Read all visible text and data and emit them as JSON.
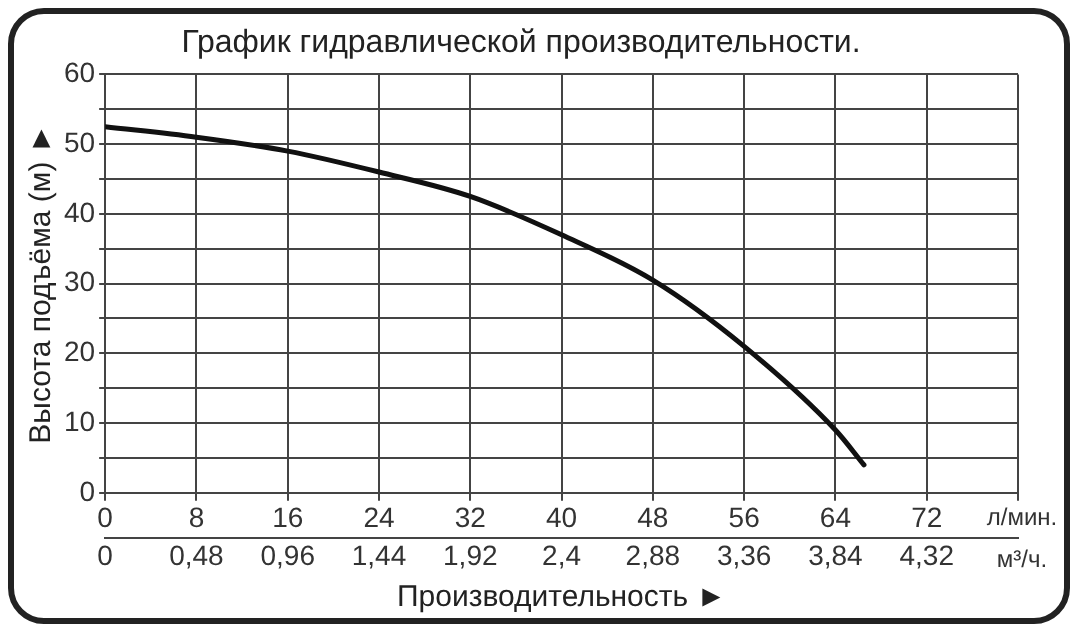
{
  "chart_data": {
    "type": "line",
    "title": "График гидравлической производительности.",
    "xlabel": "Производительность ►",
    "ylabel": "Высота подъёма (м) ►",
    "x": [
      0,
      8,
      16,
      24,
      32,
      40,
      48,
      56,
      64,
      66.5
    ],
    "series": [
      {
        "color": "#111111",
        "values": [
          52.5,
          51,
          49,
          46,
          42.5,
          37,
          30.5,
          21,
          9,
          4
        ]
      }
    ],
    "xlim": [
      0,
      80
    ],
    "xticks": [
      0,
      8,
      16,
      24,
      32,
      40,
      48,
      56,
      64,
      72,
      {
        "value": 80,
        "label": null
      }
    ],
    "x2lim": [
      0,
      4.8
    ],
    "x2ticks": [
      0,
      {
        "value": 0.48,
        "label": "0,48"
      },
      {
        "value": 0.96,
        "label": "0,96"
      },
      {
        "value": 1.44,
        "label": "1,44"
      },
      {
        "value": 1.92,
        "label": "1,92"
      },
      {
        "value": 2.4,
        "label": "2,4"
      },
      {
        "value": 2.88,
        "label": "2,88"
      },
      {
        "value": 3.36,
        "label": "3,36"
      },
      {
        "value": 3.84,
        "label": "3,84"
      },
      {
        "value": 4.32,
        "label": "4,32"
      }
    ],
    "ylim": [
      0,
      60
    ],
    "yticks": [
      0,
      {
        "value": 5,
        "label": null
      },
      10,
      {
        "value": 15,
        "label": null
      },
      20,
      {
        "value": 25,
        "label": null
      },
      30,
      {
        "value": 35,
        "label": null
      },
      40,
      {
        "value": 45,
        "label": null
      },
      50,
      {
        "value": 55,
        "label": null
      },
      60
    ],
    "annotations": [
      "л/мин.",
      "м³/ч."
    ],
    "grid": true,
    "legend": false,
    "marker": "none",
    "line_style": "solid"
  }
}
